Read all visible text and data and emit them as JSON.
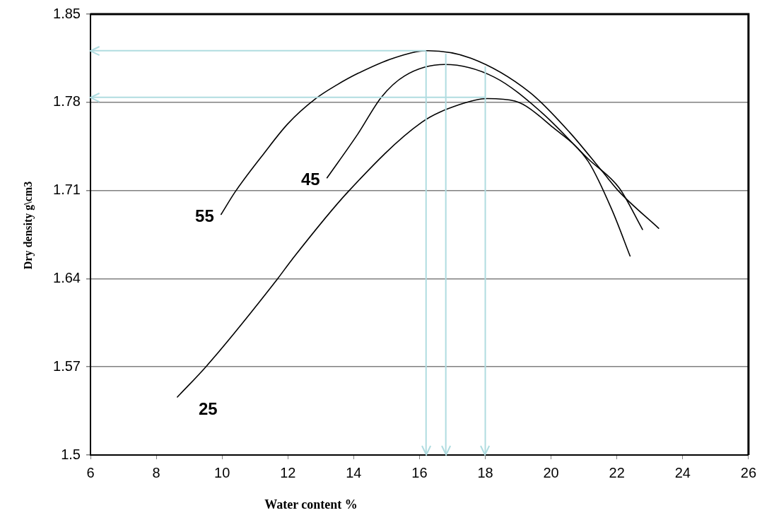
{
  "chart_data": {
    "type": "line",
    "xlabel": "Water content %",
    "ylabel": "Dry density g\\cm3",
    "xlim": [
      6,
      26
    ],
    "xticks": [
      6,
      8,
      10,
      12,
      14,
      16,
      18,
      20,
      22,
      24,
      26
    ],
    "ylim": [
      1.5,
      1.85
    ],
    "yticks": [
      1.5,
      1.57,
      1.64,
      1.71,
      1.78,
      1.85
    ],
    "grid": "y",
    "legend": false,
    "marker": "none",
    "line_style": "solid",
    "series": [
      {
        "name": "55",
        "color": "#000000",
        "x": [
          9.97,
          10.4,
          11.26,
          12.0,
          12.85,
          13.5,
          14.13,
          15.2,
          16.26,
          17.57,
          19.35,
          20.57,
          21.56,
          22.07,
          23.27
        ],
        "values": [
          1.691,
          1.709,
          1.739,
          1.763,
          1.783,
          1.794,
          1.803,
          1.815,
          1.821,
          1.815,
          1.788,
          1.756,
          1.725,
          1.709,
          1.68
        ]
      },
      {
        "name": "45",
        "color": "#000000",
        "x": [
          13.19,
          14.13,
          14.84,
          15.55,
          16.77,
          18.27,
          19.71,
          21.13,
          22.07,
          22.78
        ],
        "values": [
          1.72,
          1.755,
          1.784,
          1.801,
          1.81,
          1.8,
          1.772,
          1.735,
          1.712,
          1.679
        ]
      },
      {
        "name": "25",
        "color": "#000000",
        "x": [
          8.64,
          9.54,
          11.69,
          12.12,
          13.83,
          16.06,
          17.2,
          18.06,
          18.9,
          20.06,
          21.13,
          21.86,
          22.4
        ],
        "values": [
          1.546,
          1.571,
          1.64,
          1.655,
          1.709,
          1.764,
          1.778,
          1.783,
          1.781,
          1.76,
          1.733,
          1.694,
          1.658
        ]
      }
    ],
    "ref_lines": [
      {
        "axis": "x",
        "value": 16.2,
        "color": "#b0dce0"
      },
      {
        "axis": "x",
        "value": 16.8,
        "color": "#b0dce0"
      },
      {
        "axis": "x",
        "value": 18,
        "color": "#b0dce0"
      },
      {
        "axis": "y",
        "value": 1.821,
        "color": "#b0dce0"
      },
      {
        "axis": "y",
        "value": 1.784,
        "color": "#b0dce0"
      }
    ]
  }
}
